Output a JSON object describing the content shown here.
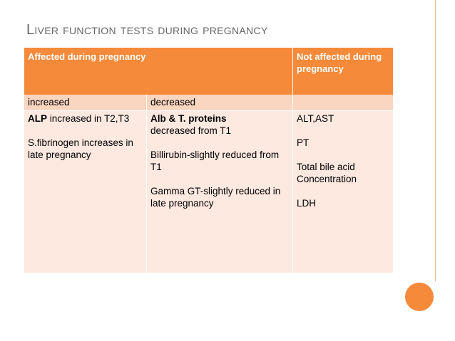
{
  "slide": {
    "title": "Liver function tests during pregnancy",
    "table": {
      "header": {
        "affected": "Affected during pregnancy",
        "not_affected": "Not affected during pregnancy"
      },
      "subheader": {
        "increased": "increased",
        "decreased": "decreased",
        "blank": ""
      },
      "increased_col": {
        "item1_bold": "ALP",
        "item1_rest": " increased in T2,T3",
        "item2": "S.fibrinogen increases in late pregnancy"
      },
      "decreased_col": {
        "item1_bold": "Alb & T. proteins",
        "item1_rest": "decreased from T1",
        "item2": "Billirubin-slightly reduced from T1",
        "item3": "Gamma GT-slightly reduced in late pregnancy"
      },
      "not_affected_col": {
        "item1": "ALT,AST",
        "item2": "PT",
        "item3": "Total bile acid Concentration",
        "item4": "LDH"
      }
    }
  },
  "colors": {
    "accent": "#f58a3a",
    "subheader_bg": "#fad5c0",
    "body_bg": "#fde9e0",
    "title_text": "#676767"
  }
}
